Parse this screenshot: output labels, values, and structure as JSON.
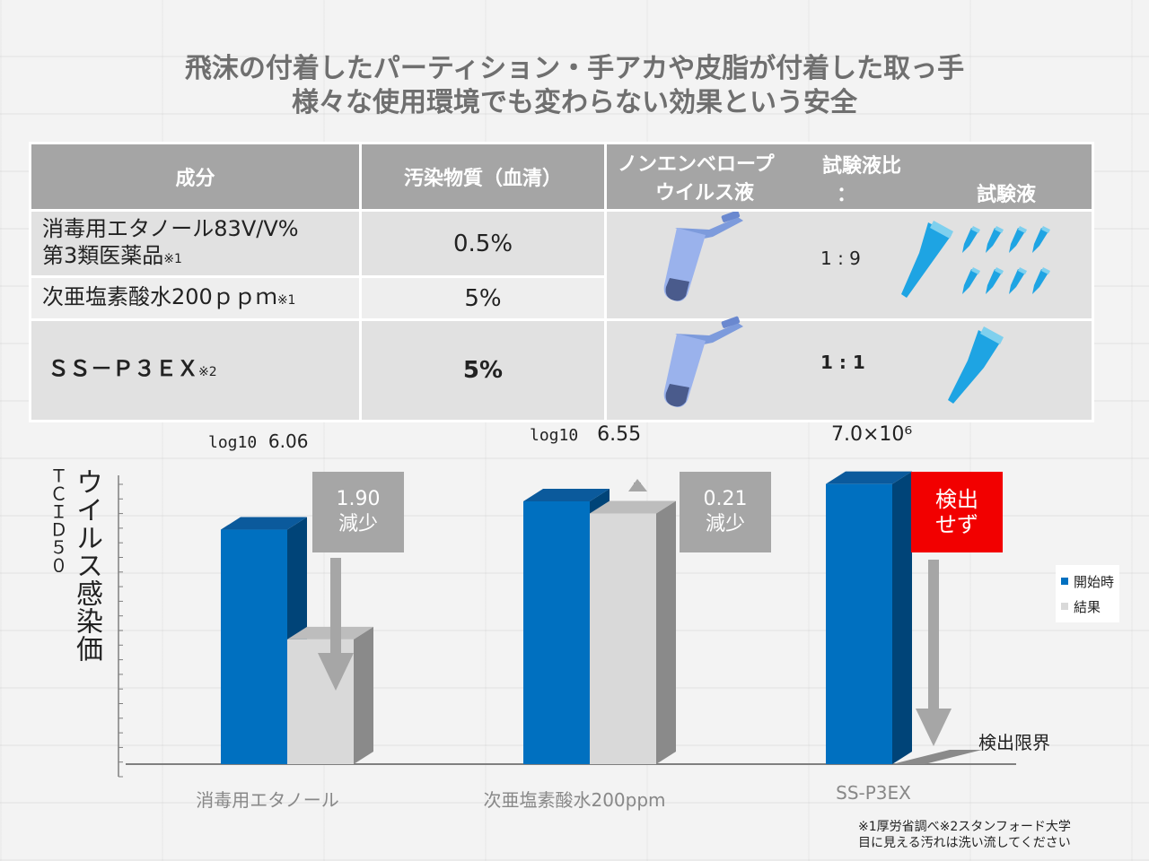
{
  "title": {
    "line1": "飛沫の付着したパーティション・手アカや皮脂が付着した取っ手",
    "line2": "様々な使用環境でも変わらない効果という安全"
  },
  "table": {
    "headers": {
      "ingredient": "成分",
      "contaminant": "汚染物質（血清）",
      "virus_line1": "ノンエンベロープ",
      "virus_line2": "ウイルス液",
      "ratio_label": "試験液比",
      "ratio_colon": "：",
      "test_liquid": "試験液"
    },
    "rows": [
      {
        "name_line1": "消毒用エタノール83V/V%",
        "name_line2": "第3類医薬品",
        "note": "※1",
        "contaminant": "0.5%"
      },
      {
        "name_line1": "次亜塩素酸水200ｐｐｍ",
        "note": "※1",
        "contaminant": "5%"
      },
      {
        "name_line1": "ＳＳ－Ｐ３ＥＸ",
        "note": "※2",
        "contaminant": "5%"
      }
    ],
    "ratio_1_9": "1 : 9",
    "ratio_1_1": "1 : 1"
  },
  "chart_data": {
    "type": "bar",
    "title": "",
    "ylabel_line1": "ＴＣＩＤ５０",
    "ylabel_line2": "ウイルス感染価",
    "categories": [
      "消毒用エタノール",
      "次亜塩素酸水200ppm",
      "SS-P3EX"
    ],
    "series": [
      {
        "name": "開始時",
        "values": [
          6.06,
          6.55,
          6.85
        ]
      },
      {
        "name": "結果",
        "values": [
          4.16,
          6.34,
          2.05
        ]
      }
    ],
    "ylim": [
      2,
      7
    ],
    "start_labels": [
      {
        "prefix": "log10",
        "value": "6.06"
      },
      {
        "prefix": "log10",
        "value": "6.55"
      },
      {
        "prefix": "",
        "value": "7.0×10⁶"
      }
    ],
    "callouts": [
      {
        "line1": "1.90",
        "line2": "減少"
      },
      {
        "line1": "0.21",
        "line2": "減少"
      },
      {
        "line1": "検出",
        "line2": "せず"
      }
    ],
    "detection_limit": "検出限界",
    "colors": {
      "start": "#0070c0",
      "result": "#d9d9d9",
      "callout": "#a6a6a6",
      "not_detected": "#f20000"
    }
  },
  "footnote": {
    "line1": "※1厚労省調べ※2スタンフォード大学",
    "line2": "目に見える汚れは洗い流してください"
  }
}
